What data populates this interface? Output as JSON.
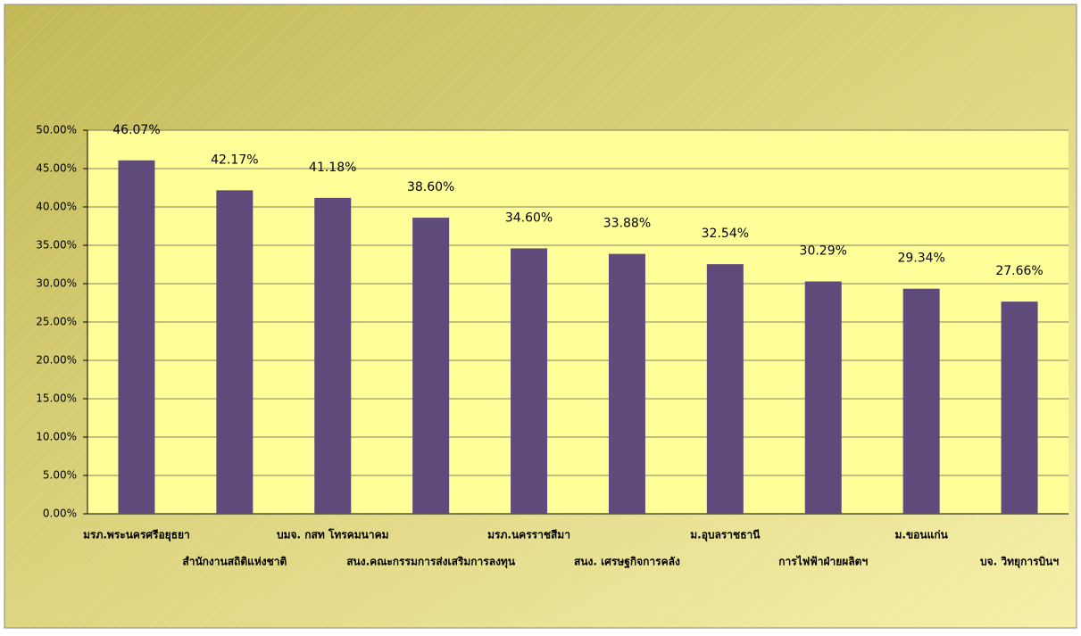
{
  "chart_data": {
    "type": "bar",
    "categories": [
      "มรภ.พระนครศรีอยุธยา",
      "สำนักงานสถิติแห่งชาติ",
      "บมจ. กสท โทรคมนาคม",
      "สนง.คณะกรรมการส่งเสริมการลงทุน",
      "มรภ.นครราชสีมา",
      "สนง. เศรษฐกิจการคลัง",
      "ม.อุบลราชธานี",
      "การไฟฟ้าฝ่ายผลิตฯ",
      "ม.ขอนแก่น",
      "บจ. วิทยุการบินฯ"
    ],
    "values": [
      46.07,
      42.17,
      41.18,
      38.6,
      34.6,
      33.88,
      32.54,
      30.29,
      29.34,
      27.66
    ],
    "value_labels": [
      "46.07%",
      "42.17%",
      "41.18%",
      "38.60%",
      "34.60%",
      "33.88%",
      "32.54%",
      "30.29%",
      "29.34%",
      "27.66%"
    ],
    "color": "#5f4b7b",
    "ylim": [
      0,
      50
    ],
    "yticks": [
      {
        "value": 0,
        "label": "0.00%"
      },
      {
        "value": 5,
        "label": "5.00%"
      },
      {
        "value": 10,
        "label": "10.00%"
      },
      {
        "value": 15,
        "label": "15.00%"
      },
      {
        "value": 20,
        "label": "20.00%"
      },
      {
        "value": 25,
        "label": "25.00%"
      },
      {
        "value": 30,
        "label": "30.00%"
      },
      {
        "value": 35,
        "label": "35.00%"
      },
      {
        "value": 40,
        "label": "40.00%"
      },
      {
        "value": 45,
        "label": "45.00%"
      },
      {
        "value": 50,
        "label": "50.00%"
      }
    ],
    "grid": true
  }
}
